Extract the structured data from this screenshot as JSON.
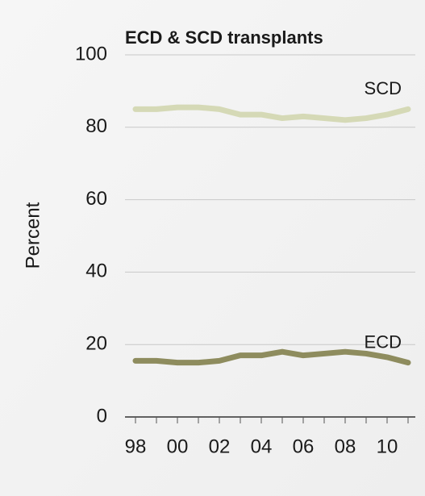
{
  "chart_data": {
    "type": "line",
    "title": "ECD & SCD transplants",
    "y_label": "Percent",
    "categories": [
      "98",
      null,
      "00",
      null,
      "02",
      null,
      "04",
      null,
      "06",
      null,
      "08",
      null,
      "10",
      null
    ],
    "series": [
      {
        "name": "SCD",
        "color": "#d5d9b6",
        "values": [
          85,
          85,
          85.5,
          85.5,
          85,
          83.5,
          83.5,
          82.5,
          83,
          82.5,
          82,
          82.5,
          83.5,
          85
        ]
      },
      {
        "name": "ECD",
        "color": "#8e8c5e",
        "values": [
          15.5,
          15.5,
          15,
          15,
          15.5,
          17,
          17,
          18,
          17,
          17.5,
          18,
          17.5,
          16.5,
          15
        ]
      }
    ],
    "ylim": [
      0,
      100
    ],
    "yticks": [
      0,
      20,
      40,
      60,
      80,
      100
    ],
    "grid": true
  }
}
